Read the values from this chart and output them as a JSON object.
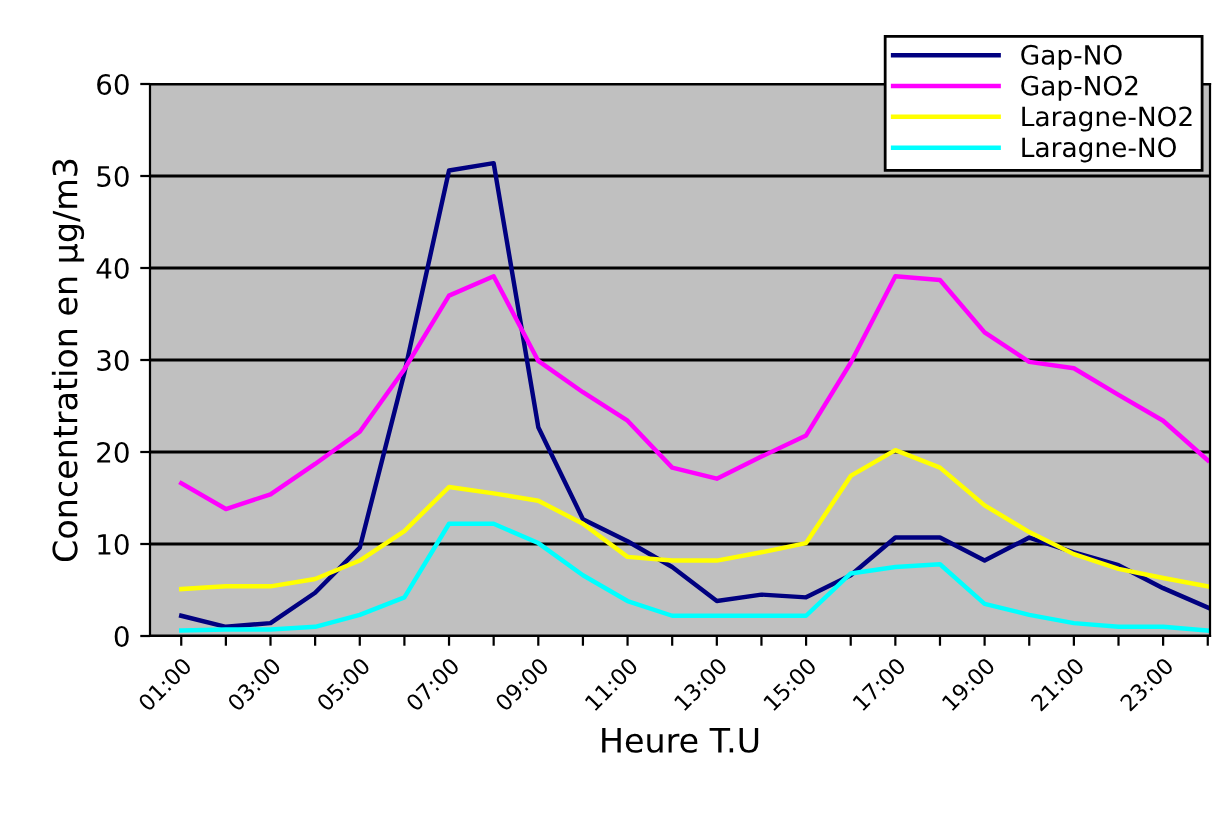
{
  "chart_data": {
    "type": "line",
    "xlabel": "Heure T.U",
    "ylabel": "Concentration en µg/m3",
    "categories": [
      "01:00",
      null,
      "03:00",
      null,
      "05:00",
      null,
      "07:00",
      null,
      "09:00",
      null,
      "11:00",
      null,
      "13:00",
      null,
      "15:00",
      null,
      "17:00",
      null,
      "19:00",
      null,
      "21:00",
      null,
      "23:00",
      null
    ],
    "series": [
      {
        "name": "Gap-NO",
        "color": "#000080",
        "values": [
          2.2,
          1.0,
          1.4,
          4.7,
          9.6,
          28.6,
          50.6,
          51.4,
          22.7,
          12.7,
          10.3,
          7.5,
          3.8,
          4.5,
          4.2,
          6.6,
          10.7,
          10.7,
          8.2,
          10.7,
          9.1,
          7.7,
          5.2,
          3.1
        ]
      },
      {
        "name": "Gap-NO2",
        "color": "#ff00ff",
        "values": [
          16.6,
          13.8,
          15.4,
          18.7,
          22.2,
          29.0,
          37.0,
          39.1,
          29.9,
          26.5,
          23.4,
          18.3,
          17.1,
          19.5,
          21.8,
          29.7,
          39.1,
          38.7,
          33.0,
          29.8,
          29.1,
          26.2,
          23.4,
          19.1
        ]
      },
      {
        "name": "Laragne-NO2",
        "color": "#ffff00",
        "values": [
          5.1,
          5.4,
          5.4,
          6.2,
          8.2,
          11.4,
          16.2,
          15.5,
          14.7,
          12.2,
          8.6,
          8.2,
          8.2,
          9.1,
          10.1,
          17.4,
          20.2,
          18.3,
          14.2,
          11.3,
          8.9,
          7.3,
          6.3,
          5.4
        ]
      },
      {
        "name": "Laragne-NO",
        "color": "#00ffff",
        "values": [
          0.6,
          0.7,
          0.7,
          1.0,
          2.3,
          4.2,
          12.2,
          12.2,
          10.1,
          6.6,
          3.8,
          2.2,
          2.2,
          2.2,
          2.2,
          6.8,
          7.5,
          7.8,
          3.5,
          2.3,
          1.4,
          1.0,
          1.0,
          0.6
        ]
      }
    ],
    "ylim": [
      0,
      60
    ],
    "yticks": [
      0,
      10,
      20,
      30,
      40,
      50,
      60
    ],
    "grid": "y",
    "legend": "top right",
    "marker": "none",
    "line_style": "solid"
  }
}
